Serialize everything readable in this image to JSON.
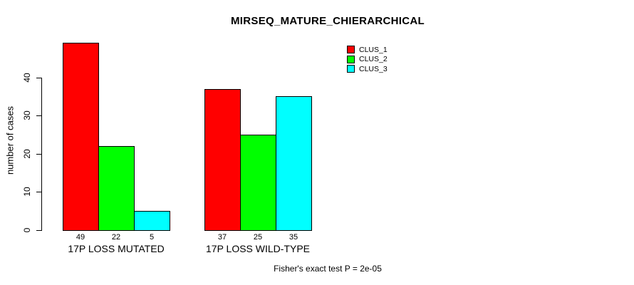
{
  "chart_data": {
    "type": "bar",
    "title": "MIRSEQ_MATURE_CHIERARCHICAL",
    "ylabel": "number of cases",
    "xlabel": "",
    "ylim": [
      0,
      49
    ],
    "yticks": [
      0,
      10,
      20,
      30,
      40
    ],
    "grid": false,
    "legend_position": "top-right-inside",
    "bar_value_labels_shown": true,
    "categories": [
      "17P LOSS MUTATED",
      "17P LOSS WILD-TYPE"
    ],
    "series": [
      {
        "name": "CLUS_1",
        "color": "#ff0000",
        "values": [
          49,
          37
        ]
      },
      {
        "name": "CLUS_2",
        "color": "#00ff00",
        "values": [
          22,
          25
        ]
      },
      {
        "name": "CLUS_3",
        "color": "#00ffff",
        "values": [
          5,
          35
        ]
      }
    ],
    "annotation": "Fisher's exact test P = 2e-05"
  },
  "colors": {
    "background": "#ffffff",
    "axis": "#000000",
    "text": "#000000",
    "bar_border": "#000000"
  }
}
